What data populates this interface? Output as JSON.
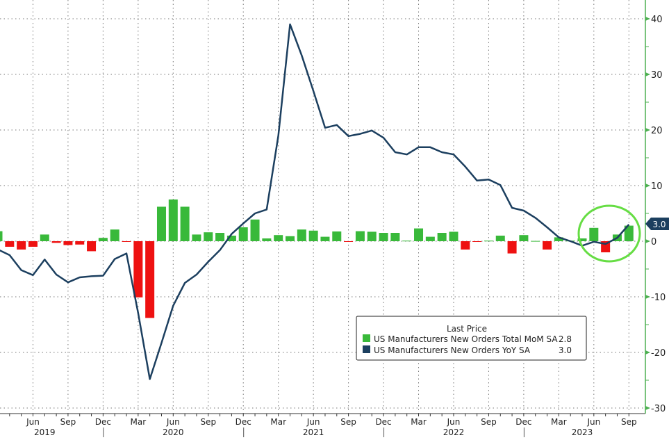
{
  "chart_data": {
    "type": "bar+line",
    "title": "",
    "x": [
      "Mar 2019",
      "Apr 2019",
      "May 2019",
      "Jun 2019",
      "Jul 2019",
      "Aug 2019",
      "Sep 2019",
      "Oct 2019",
      "Nov 2019",
      "Dec 2019",
      "Jan 2020",
      "Feb 2020",
      "Mar 2020",
      "Apr 2020",
      "May 2020",
      "Jun 2020",
      "Jul 2020",
      "Aug 2020",
      "Sep 2020",
      "Oct 2020",
      "Nov 2020",
      "Dec 2020",
      "Jan 2021",
      "Feb 2021",
      "Mar 2021",
      "Apr 2021",
      "May 2021",
      "Jun 2021",
      "Jul 2021",
      "Aug 2021",
      "Sep 2021",
      "Oct 2021",
      "Nov 2021",
      "Dec 2021",
      "Jan 2022",
      "Feb 2022",
      "Mar 2022",
      "Apr 2022",
      "May 2022",
      "Jun 2022",
      "Jul 2022",
      "Aug 2022",
      "Sep 2022",
      "Oct 2022",
      "Nov 2022",
      "Dec 2022",
      "Jan 2023",
      "Feb 2023",
      "Mar 2023",
      "Apr 2023",
      "May 2023",
      "Jun 2023",
      "Jul 2023",
      "Aug 2023",
      "Sep 2023"
    ],
    "series": [
      {
        "name": "US Manufacturers New Orders Total MoM SA",
        "type": "bar",
        "last": "2.8",
        "positive_color": "#39b93a",
        "negative_color": "#ee1111",
        "values": [
          1.8,
          -1.0,
          -1.5,
          -1.0,
          1.2,
          -0.3,
          -0.7,
          -0.6,
          -1.8,
          0.6,
          2.1,
          -0.1,
          -10.1,
          -13.8,
          6.2,
          7.5,
          6.2,
          1.2,
          1.6,
          1.5,
          1.0,
          2.5,
          3.9,
          0.5,
          1.1,
          0.9,
          2.1,
          1.9,
          0.8,
          1.75,
          -0.1,
          1.8,
          1.7,
          1.5,
          1.5,
          0.1,
          2.3,
          0.8,
          1.5,
          1.7,
          -1.5,
          -0.05,
          0.1,
          1.0,
          -2.2,
          1.1,
          0.05,
          -1.5,
          0.7,
          0.1,
          0.5,
          2.4,
          -2.0,
          1.2,
          2.8
        ]
      },
      {
        "name": "US Manufacturers New Orders YoY SA",
        "type": "line",
        "last": "3.0",
        "color": "#1c3f5f",
        "values": [
          -1.5,
          -2.5,
          -5.2,
          -6.1,
          -3.3,
          -6.0,
          -7.4,
          -6.5,
          -6.3,
          -6.2,
          -3.2,
          -2.2,
          -12.9,
          -24.8,
          -18.3,
          -11.6,
          -7.5,
          -6.0,
          -3.7,
          -1.6,
          1.3,
          3.2,
          5.0,
          5.7,
          19.0,
          39.0,
          33.4,
          27.0,
          20.4,
          20.9,
          18.9,
          19.3,
          19.9,
          18.6,
          16.0,
          15.6,
          16.9,
          16.9,
          16.0,
          15.6,
          13.4,
          10.9,
          11.1,
          10.1,
          6.0,
          5.5,
          4.2,
          2.5,
          0.7,
          0.0,
          -0.8,
          -0.1,
          -0.5,
          0.6,
          3.0
        ]
      }
    ],
    "y_ticks": [
      "40",
      "30",
      "20",
      "10",
      "0",
      "-10",
      "-20",
      "-30"
    ],
    "ylim": [
      -31,
      43
    ],
    "month_tick_labels": [
      {
        "label": "Jun",
        "x": "Jun 2019"
      },
      {
        "label": "Sep",
        "x": "Sep 2019"
      },
      {
        "label": "Dec",
        "x": "Dec 2019"
      },
      {
        "label": "Mar",
        "x": "Mar 2020"
      },
      {
        "label": "Jun",
        "x": "Jun 2020"
      },
      {
        "label": "Sep",
        "x": "Sep 2020"
      },
      {
        "label": "Dec",
        "x": "Dec 2020"
      },
      {
        "label": "Mar",
        "x": "Mar 2021"
      },
      {
        "label": "Jun",
        "x": "Jun 2021"
      },
      {
        "label": "Sep",
        "x": "Sep 2021"
      },
      {
        "label": "Dec",
        "x": "Dec 2021"
      },
      {
        "label": "Mar",
        "x": "Mar 2022"
      },
      {
        "label": "Jun",
        "x": "Jun 2022"
      },
      {
        "label": "Sep",
        "x": "Sep 2022"
      },
      {
        "label": "Dec",
        "x": "Dec 2022"
      },
      {
        "label": "Mar",
        "x": "Mar 2023"
      },
      {
        "label": "Jun",
        "x": "Jun 2023"
      },
      {
        "label": "Sep",
        "x": "Sep 2023"
      }
    ],
    "year_labels": [
      {
        "label": "2019",
        "x": "Jul 2019"
      },
      {
        "label": "2020",
        "x": "Jun 2020"
      },
      {
        "label": "2021",
        "x": "Jun 2021"
      },
      {
        "label": "2022",
        "x": "Jun 2022"
      },
      {
        "label": "2023",
        "x": "May 2023"
      }
    ],
    "legend": {
      "title": "Last Price",
      "position": "bottom-right"
    },
    "last_value_badge": "3.0",
    "annotation": "green circle highlighting Jun–Sep 2023",
    "grid": true
  }
}
